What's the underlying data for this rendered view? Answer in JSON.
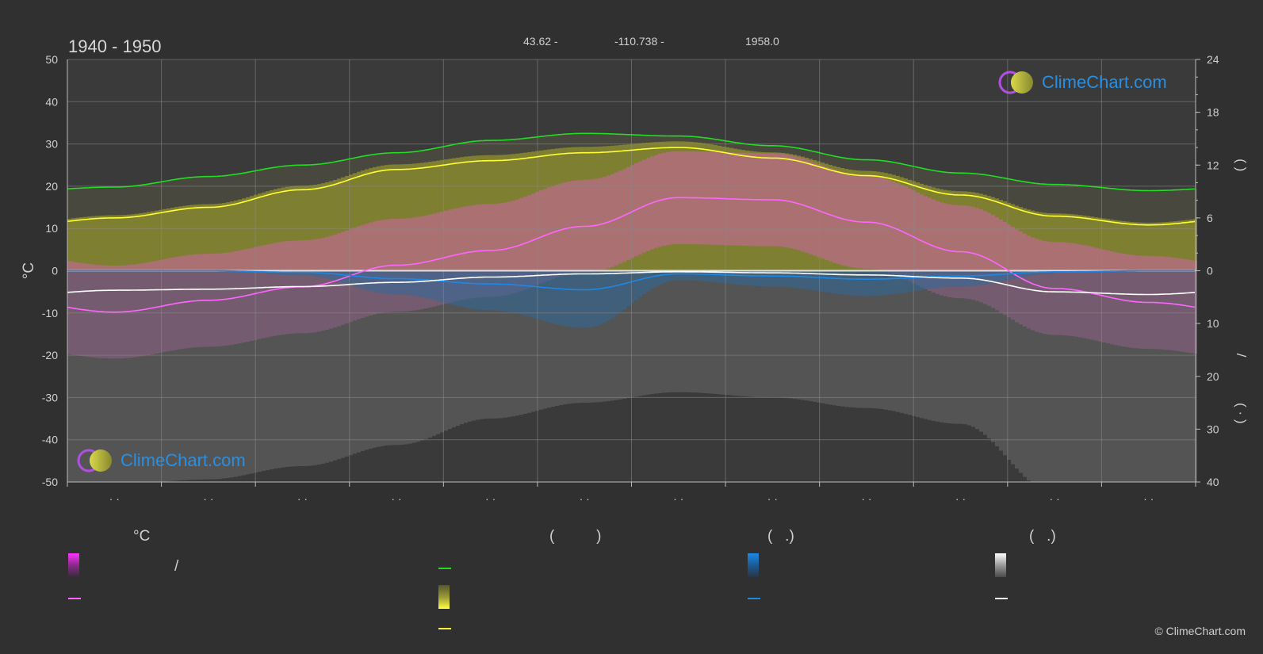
{
  "header": {
    "period": "1940 - 1950",
    "latitude": "43.62 -",
    "longitude": "-110.738 -",
    "elevation": "1958.0"
  },
  "logo_text": "ClimeChart.com",
  "copyright": "© ClimeChart.com",
  "legend": {
    "temperature_unit": "°C",
    "temp_range_separator": "/",
    "sun_unit": "(          )",
    "rain_unit": "(   .)",
    "snow_unit": "(   .)"
  },
  "colors": {
    "background": "#303030",
    "daylight": "#22dd22",
    "sunshine": "#ffff33",
    "temp_mean": "#ff66ff",
    "rain": "#1e88e5",
    "snow": "#ffffff",
    "logo": "#2a8fe0"
  },
  "chart_data": {
    "type": "line",
    "xlabel": "",
    "ylabel": "°C",
    "ylim": [
      -50,
      50
    ],
    "y_ticks": [
      50,
      40,
      30,
      20,
      10,
      0,
      -10,
      -20,
      -30,
      -40,
      -50
    ],
    "y2_sun_ticks": [
      24,
      18,
      12,
      6,
      0
    ],
    "y2_rain_ticks": [
      10,
      20,
      30,
      40
    ],
    "y2_sun_label": "(       )",
    "y2_rain_label": "(  ·  )",
    "y2_rain_separator": "/",
    "months": [
      "· ·",
      "· ·",
      "· ·",
      "· ·",
      "· ·",
      "· ·",
      "· ·",
      "· ·",
      "· ·",
      "· ·",
      "· ·",
      "· ·"
    ],
    "series": [
      {
        "key": "daylight",
        "unit": "hours",
        "values": [
          9.5,
          10.7,
          12.0,
          13.4,
          14.8,
          15.6,
          15.3,
          14.2,
          12.6,
          11.1,
          9.8,
          9.1
        ]
      },
      {
        "key": "sunshine",
        "unit": "hours",
        "values": [
          6.0,
          7.2,
          9.2,
          11.5,
          12.5,
          13.4,
          14.0,
          12.8,
          10.8,
          8.6,
          6.2,
          5.2
        ]
      },
      {
        "key": "temp_mean",
        "unit": "°C",
        "values": [
          -9.8,
          -7.0,
          -3.8,
          1.3,
          4.8,
          10.5,
          17.3,
          16.8,
          11.5,
          4.5,
          -4.2,
          -7.5
        ]
      },
      {
        "key": "snow",
        "unit": "mm",
        "values": [
          3.7,
          3.5,
          3.0,
          2.2,
          1.2,
          0.6,
          0.2,
          0.4,
          0.8,
          1.4,
          4.0,
          4.5
        ]
      },
      {
        "key": "rain",
        "unit": "mm",
        "values": [
          0.0,
          0.0,
          0.3,
          1.5,
          2.5,
          3.6,
          0.6,
          1.0,
          1.6,
          1.0,
          0.2,
          0.0
        ]
      }
    ]
  }
}
